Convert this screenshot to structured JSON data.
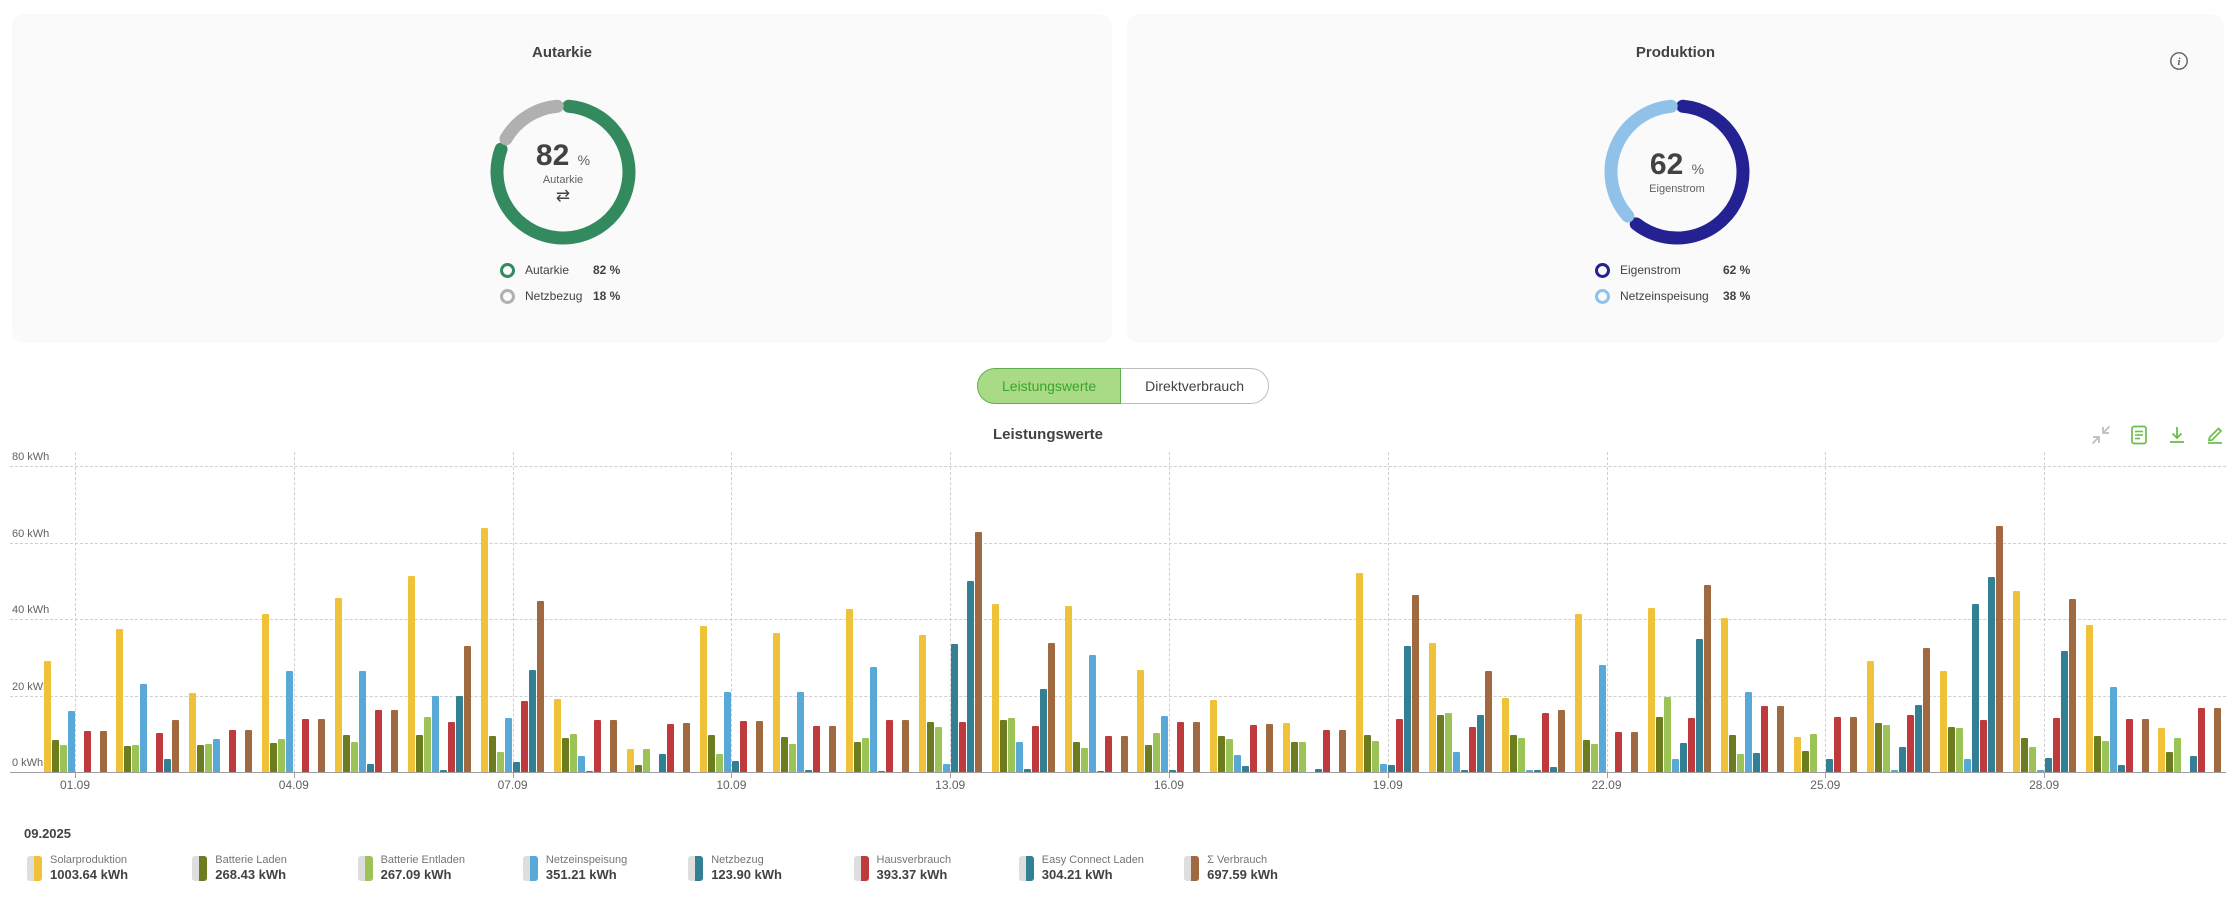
{
  "cards": {
    "autarkie": {
      "title": "Autarkie",
      "center_value": "82",
      "center_unit": "%",
      "center_label": "Autarkie",
      "legend": [
        {
          "label": "Autarkie",
          "value": "82 %",
          "pct": 82,
          "color": "#338a5e"
        },
        {
          "label": "Netzbezug",
          "value": "18 %",
          "pct": 18,
          "color": "#b0b0b0"
        }
      ]
    },
    "produktion": {
      "title": "Produktion",
      "center_value": "62",
      "center_unit": "%",
      "center_label": "Eigenstrom",
      "legend": [
        {
          "label": "Eigenstrom",
          "value": "62 %",
          "pct": 62,
          "color": "#242192"
        },
        {
          "label": "Netzeinspeisung",
          "value": "38 %",
          "pct": 38,
          "color": "#90c1e9"
        }
      ]
    }
  },
  "toggle": {
    "options": [
      {
        "label": "Leistungswerte",
        "active": true
      },
      {
        "label": "Direktverbrauch",
        "active": false
      }
    ]
  },
  "chart_section_title": "Leistungswerte",
  "period_label": "09.2025",
  "chart_data": {
    "type": "bar",
    "title": "Leistungswerte",
    "ylabel_ticks": [
      "0 kWh",
      "20 kWh",
      "40 kWh",
      "60 kWh",
      "80 kWh"
    ],
    "ylim": [
      0,
      80
    ],
    "grid": true,
    "x_tick_every": 3,
    "x_tick_labels": [
      "01.09",
      "04.09",
      "07.09",
      "10.09",
      "13.09",
      "16.09",
      "19.09",
      "22.09",
      "25.09",
      "28.09"
    ],
    "categories": [
      "01.09",
      "02.09",
      "03.09",
      "04.09",
      "05.09",
      "06.09",
      "07.09",
      "08.09",
      "09.09",
      "10.09",
      "11.09",
      "12.09",
      "13.09",
      "14.09",
      "15.09",
      "16.09",
      "17.09",
      "18.09",
      "19.09",
      "20.09",
      "21.09",
      "22.09",
      "23.09",
      "24.09",
      "25.09",
      "26.09",
      "27.09",
      "28.09",
      "29.09",
      "30.09"
    ],
    "series": [
      {
        "name": "Solarproduktion",
        "total": "1003.64 kWh",
        "color": "#efc239",
        "values": [
          29.0,
          37.5,
          20.6,
          41.3,
          45.4,
          51.2,
          63.7,
          19.1,
          6.1,
          38.1,
          36.3,
          42.6,
          35.8,
          43.8,
          43.3,
          26.6,
          18.8,
          12.8,
          51.9,
          33.8,
          19.3,
          41.4,
          43.0,
          40.3,
          9.1,
          29.0,
          26.3,
          47.2,
          38.5,
          11.5
        ]
      },
      {
        "name": "Batterie Laden",
        "total": "268.43 kWh",
        "color": "#6d7c1f",
        "values": [
          8.4,
          6.7,
          7.1,
          7.6,
          9.7,
          9.6,
          9.3,
          9.0,
          1.9,
          9.7,
          9.2,
          7.9,
          13.2,
          13.7,
          7.9,
          7.0,
          9.3,
          7.8,
          9.7,
          14.8,
          9.7,
          8.4,
          14.4,
          9.6,
          5.4,
          12.7,
          11.7,
          8.9,
          9.5,
          5.3
        ]
      },
      {
        "name": "Batterie Entladen",
        "total": "267.09 kWh",
        "color": "#9cc355",
        "values": [
          7.0,
          7.1,
          7.4,
          8.7,
          7.8,
          14.4,
          5.3,
          10.0,
          6.1,
          4.8,
          7.3,
          8.8,
          11.7,
          14.1,
          6.4,
          10.2,
          8.6,
          7.8,
          8.0,
          15.5,
          9.0,
          7.3,
          19.7,
          4.7,
          10.0,
          12.4,
          11.5,
          6.6,
          8.0,
          9.0
        ]
      },
      {
        "name": "Netzeinspeisung",
        "total": "351.21 kWh",
        "color": "#58a9d8",
        "values": [
          16.0,
          22.9,
          8.7,
          26.3,
          26.3,
          19.8,
          14.2,
          4.1,
          0,
          20.9,
          20.8,
          27.5,
          2.0,
          7.8,
          30.5,
          14.6,
          4.4,
          0,
          2.2,
          5.3,
          0.6,
          27.9,
          3.5,
          20.8,
          0,
          0.4,
          3.5,
          0.4,
          22.3,
          0
        ]
      },
      {
        "name": "Netzbezug",
        "total": "123.90 kWh",
        "color": "#337f93",
        "values": [
          0,
          0,
          0,
          0,
          2.0,
          0.6,
          2.5,
          0.2,
          4.6,
          2.8,
          0.4,
          0.3,
          33.4,
          0.7,
          0.3,
          0.6,
          1.5,
          0.9,
          1.9,
          0.6,
          0.4,
          0,
          7.5,
          4.9,
          3.4,
          6.5,
          43.8,
          3.7,
          1.9,
          4.2
        ]
      },
      {
        "name": "Hausverbrauch",
        "total": "393.37 kWh",
        "color": "#bf3a3c",
        "values": [
          10.6,
          10.3,
          11.0,
          13.8,
          16.1,
          13.1,
          18.5,
          13.6,
          12.5,
          13.4,
          11.9,
          13.7,
          13.1,
          12.0,
          9.3,
          13.0,
          12.4,
          11.1,
          13.9,
          11.8,
          15.3,
          10.4,
          14.0,
          17.3,
          14.4,
          15.0,
          13.7,
          14.2,
          13.9,
          16.8
        ]
      },
      {
        "name": "Easy Connect Laden",
        "total": "304.21 kWh",
        "color": "#337f93",
        "values": [
          0,
          3.5,
          0,
          0,
          0,
          19.8,
          26.6,
          0,
          0,
          0,
          0,
          0,
          49.9,
          21.7,
          0,
          0,
          0,
          0,
          33.0,
          15.0,
          1.2,
          0,
          34.8,
          0,
          0,
          17.5,
          51.1,
          31.6,
          0,
          0
        ]
      },
      {
        "name": "Σ Verbrauch",
        "total": "697.59 kWh",
        "color": "#a16940",
        "values": [
          10.7,
          13.5,
          11.0,
          13.8,
          16.1,
          32.9,
          44.8,
          13.6,
          12.7,
          13.4,
          12.1,
          13.7,
          62.8,
          33.6,
          9.3,
          13.2,
          12.6,
          10.9,
          46.3,
          26.5,
          16.2,
          10.4,
          48.8,
          17.3,
          14.4,
          32.3,
          64.3,
          45.3,
          13.9,
          16.8
        ]
      }
    ]
  }
}
